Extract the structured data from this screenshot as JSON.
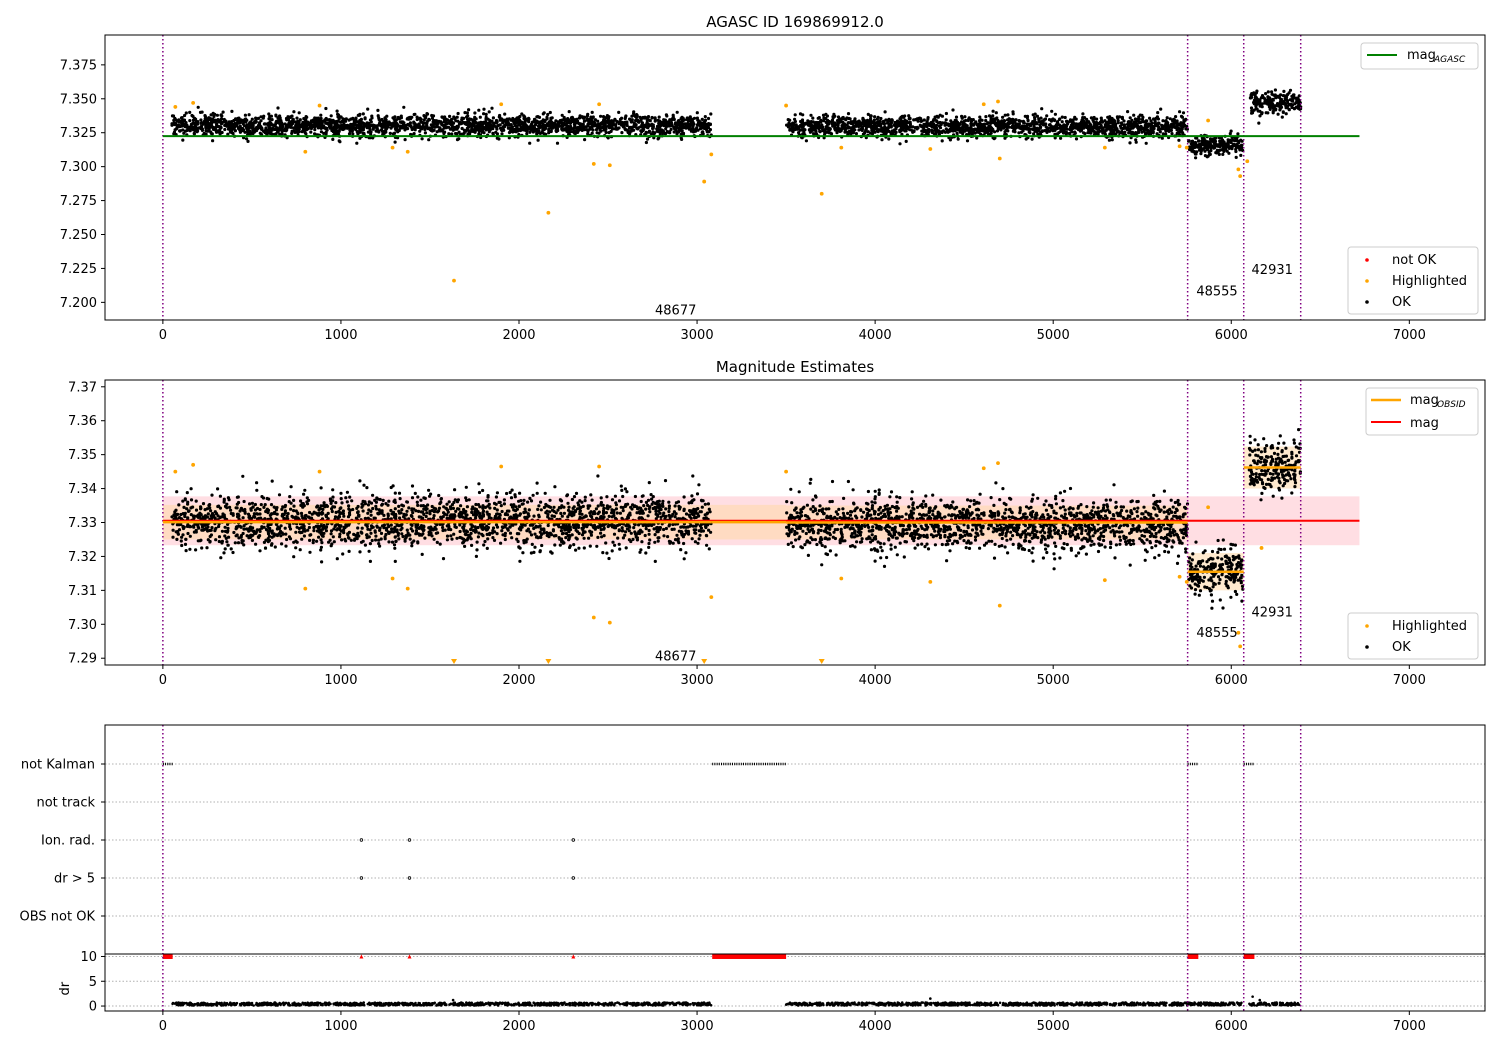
{
  "colors": {
    "ok": "#000000",
    "highlighted": "#ffa500",
    "not_ok": "#ff0000",
    "obsid_boundary": "#800080",
    "mag_agasc": "#008000",
    "mag_obsid": "#ffa500",
    "mag": "#ff0000",
    "band_mag": "#ffb6c1",
    "band_obsid": "#ffd8a8",
    "grid": "#b0b0b0"
  },
  "chart_data": [
    {
      "type": "scatter",
      "title": "AGASC ID 169869912.0",
      "xlim": [
        -325,
        7425
      ],
      "ylim": [
        7.187,
        7.397
      ],
      "xticks": [
        0,
        1000,
        2000,
        3000,
        4000,
        5000,
        6000,
        7000
      ],
      "yticks": [
        7.2,
        7.225,
        7.25,
        7.275,
        7.3,
        7.325,
        7.35,
        7.375
      ],
      "ytick_labels": [
        "7.200",
        "7.225",
        "7.250",
        "7.275",
        "7.300",
        "7.325",
        "7.350",
        "7.375"
      ],
      "obsid_boundaries": [
        0,
        5755,
        6070,
        6390
      ],
      "obsid_labels": [
        {
          "text": "48677",
          "x": 2880,
          "y": 7.194
        },
        {
          "text": "48555",
          "x": 5920,
          "y": 7.208
        },
        {
          "text": "42931",
          "x": 6230,
          "y": 7.224
        }
      ],
      "mag_agasc": {
        "value": 7.3225,
        "x": [
          0,
          6720
        ]
      },
      "segments": [
        {
          "x": [
            50,
            3080
          ],
          "center": 7.3305,
          "spread": 0.0055
        },
        {
          "x": [
            3500,
            5755
          ],
          "center": 7.3295,
          "spread": 0.0055
        },
        {
          "x": [
            5760,
            6065
          ],
          "center": 7.3155,
          "spread": 0.005
        },
        {
          "x": [
            6100,
            6390
          ],
          "center": 7.3465,
          "spread": 0.006
        }
      ],
      "highlighted_points": [
        [
          70,
          7.344
        ],
        [
          170,
          7.347
        ],
        [
          800,
          7.311
        ],
        [
          880,
          7.345
        ],
        [
          1290,
          7.314
        ],
        [
          1375,
          7.311
        ],
        [
          1635,
          7.216
        ],
        [
          1900,
          7.346
        ],
        [
          2165,
          7.266
        ],
        [
          2420,
          7.302
        ],
        [
          2450,
          7.346
        ],
        [
          2510,
          7.301
        ],
        [
          3040,
          7.289
        ],
        [
          3080,
          7.309
        ],
        [
          3500,
          7.345
        ],
        [
          3700,
          7.28
        ],
        [
          3810,
          7.314
        ],
        [
          4310,
          7.313
        ],
        [
          4610,
          7.346
        ],
        [
          4690,
          7.348
        ],
        [
          4700,
          7.306
        ],
        [
          5290,
          7.314
        ],
        [
          5710,
          7.315
        ],
        [
          5750,
          7.314
        ],
        [
          5870,
          7.334
        ],
        [
          6040,
          7.298
        ],
        [
          6050,
          7.293
        ],
        [
          6090,
          7.304
        ]
      ],
      "legend_lines": [
        {
          "label": "mag",
          "sub": "AGASC"
        }
      ],
      "legend_points": [
        {
          "label": "not OK",
          "color_key": "not_ok"
        },
        {
          "label": "Highlighted",
          "color_key": "highlighted"
        },
        {
          "label": "OK",
          "color_key": "ok"
        }
      ]
    },
    {
      "type": "scatter",
      "title": "Magnitude Estimates",
      "xlim": [
        -325,
        7425
      ],
      "ylim": [
        7.288,
        7.372
      ],
      "xticks": [
        0,
        1000,
        2000,
        3000,
        4000,
        5000,
        6000,
        7000
      ],
      "yticks": [
        7.29,
        7.3,
        7.31,
        7.32,
        7.33,
        7.34,
        7.35,
        7.36,
        7.37
      ],
      "ytick_labels": [
        "7.29",
        "7.30",
        "7.31",
        "7.32",
        "7.33",
        "7.34",
        "7.35",
        "7.36",
        "7.37"
      ],
      "obsid_boundaries": [
        0,
        5755,
        6070,
        6390
      ],
      "obsid_labels": [
        {
          "text": "48677",
          "x": 2880,
          "y": 7.2905
        },
        {
          "text": "48555",
          "x": 5920,
          "y": 7.2975
        },
        {
          "text": "42931",
          "x": 6230,
          "y": 7.3035
        }
      ],
      "mag": {
        "value": 7.3305,
        "x": [
          0,
          6720
        ],
        "band": [
          7.3233,
          7.3377
        ]
      },
      "mag_obsid": [
        {
          "x": [
            0,
            3080
          ],
          "value": 7.3301,
          "band": [
            7.325,
            7.3352
          ]
        },
        {
          "x": [
            3080,
            3500
          ],
          "value": 7.3301,
          "band": [
            7.325,
            7.3352
          ]
        },
        {
          "x": [
            3500,
            5755
          ],
          "value": 7.33,
          "band": [
            7.325,
            7.335
          ]
        },
        {
          "x": [
            5755,
            6070
          ],
          "value": 7.3155,
          "band": [
            7.31,
            7.321
          ]
        },
        {
          "x": [
            6070,
            6390
          ],
          "value": 7.3462,
          "band": [
            7.34,
            7.3524
          ]
        }
      ],
      "segments": [
        {
          "x": [
            50,
            3080
          ],
          "center": 7.3305,
          "spread": 0.0055
        },
        {
          "x": [
            3500,
            5755
          ],
          "center": 7.3295,
          "spread": 0.0055
        },
        {
          "x": [
            5760,
            6065
          ],
          "center": 7.3155,
          "spread": 0.005
        },
        {
          "x": [
            6100,
            6390
          ],
          "center": 7.3465,
          "spread": 0.006
        }
      ],
      "highlighted_points": [
        [
          70,
          7.345
        ],
        [
          170,
          7.347
        ],
        [
          800,
          7.3105
        ],
        [
          880,
          7.345
        ],
        [
          1290,
          7.3135
        ],
        [
          1375,
          7.3105
        ],
        [
          1900,
          7.3465
        ],
        [
          2420,
          7.302
        ],
        [
          2450,
          7.3465
        ],
        [
          2510,
          7.3005
        ],
        [
          3080,
          7.308
        ],
        [
          3500,
          7.345
        ],
        [
          3810,
          7.3135
        ],
        [
          4310,
          7.3125
        ],
        [
          4610,
          7.346
        ],
        [
          4690,
          7.3475
        ],
        [
          4700,
          7.3055
        ],
        [
          5290,
          7.313
        ],
        [
          5710,
          7.314
        ],
        [
          5750,
          7.3125
        ],
        [
          5870,
          7.3345
        ],
        [
          6040,
          7.2975
        ],
        [
          6050,
          7.2935
        ],
        [
          6170,
          7.3225
        ]
      ],
      "clipped_highlighted_x": [
        1635,
        2165,
        3040,
        3700
      ],
      "legend_lines": [
        {
          "label": "mag",
          "sub": "OBSID",
          "color_key": "mag_obsid"
        },
        {
          "label": "mag",
          "sub": "",
          "color_key": "mag"
        }
      ],
      "legend_points": [
        {
          "label": "Highlighted",
          "color_key": "highlighted"
        },
        {
          "label": "OK",
          "color_key": "ok"
        }
      ]
    },
    {
      "type": "scatter",
      "xlim": [
        -325,
        7425
      ],
      "xticks": [
        0,
        1000,
        2000,
        3000,
        4000,
        5000,
        6000,
        7000
      ],
      "obsid_boundaries": [
        0,
        5755,
        6070,
        6390
      ],
      "flag_rows": [
        "not Kalman",
        "not track",
        "Ion. rad.",
        "dr > 5",
        "OBS not OK"
      ],
      "flags": {
        "not Kalman": [
          [
            0,
            55
          ],
          [
            3085,
            3500
          ],
          [
            5755,
            5815
          ],
          [
            6070,
            6130
          ]
        ],
        "not track": [],
        "Ion. rad.": [
          [
            1115,
            1115
          ],
          [
            1385,
            1385
          ],
          [
            2305,
            2305
          ]
        ],
        "dr > 5": [
          [
            1115,
            1115
          ],
          [
            1385,
            1385
          ],
          [
            2305,
            2305
          ]
        ],
        "OBS not OK": []
      },
      "dr": {
        "ylabel": "dr",
        "yticks": [
          0,
          5,
          10
        ],
        "ylim": [
          -1,
          10.5
        ],
        "clip_value": 10,
        "clipped_x_ranges": [
          [
            0,
            55
          ],
          [
            1115,
            1115
          ],
          [
            1385,
            1385
          ],
          [
            2305,
            2305
          ],
          [
            3085,
            3500
          ],
          [
            5755,
            5815
          ],
          [
            6070,
            6130
          ]
        ],
        "baseline": 0.4,
        "baseline_ranges": [
          [
            50,
            3080
          ],
          [
            3500,
            5755
          ],
          [
            5760,
            6065
          ],
          [
            6100,
            6390
          ]
        ],
        "outliers": [
          [
            1630,
            1.2
          ],
          [
            4310,
            1.5
          ],
          [
            6120,
            1.9
          ],
          [
            6160,
            1.2
          ]
        ]
      }
    }
  ]
}
